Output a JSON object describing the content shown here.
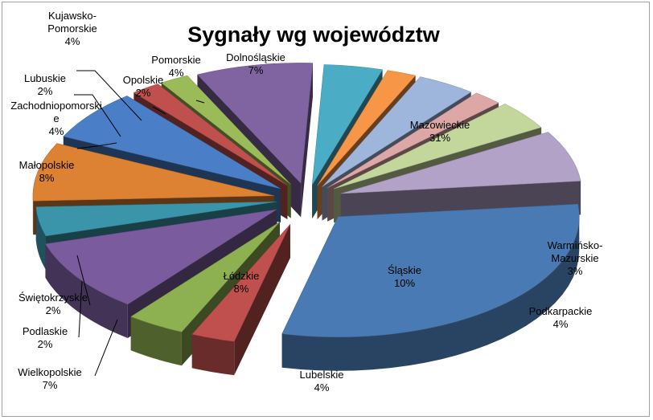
{
  "chart_data": {
    "type": "pie",
    "title": "Sygnały wg województw",
    "slices": [
      {
        "name": "Mazowieckie",
        "value": 31,
        "pct": "31%",
        "color": "#4a7ab4",
        "labelLines": [
          "Mazowieckie",
          "31%"
        ]
      },
      {
        "name": "Warmińsko-Mazurskie",
        "value": 3,
        "pct": "3%",
        "color": "#c0504d",
        "labelLines": [
          "Warmińsko-",
          "Mazurskie",
          "3%"
        ]
      },
      {
        "name": "Podkarpackie",
        "value": 4,
        "pct": "4%",
        "color": "#8db050",
        "labelLines": [
          "Podkarpackie",
          "4%"
        ]
      },
      {
        "name": "Śląskie",
        "value": 10,
        "pct": "10%",
        "color": "#7a5c9e",
        "labelLines": [
          "Śląskie",
          "10%"
        ]
      },
      {
        "name": "Lubelskie",
        "value": 4,
        "pct": "4%",
        "color": "#3b95aa",
        "labelLines": [
          "Lubelskie",
          "4%"
        ]
      },
      {
        "name": "Łódzkie",
        "value": 8,
        "pct": "8%",
        "color": "#dd8133",
        "labelLines": [
          "Łódzkie",
          "8%"
        ]
      },
      {
        "name": "Wielkopolskie",
        "value": 7,
        "pct": "7%",
        "color": "#4a7fc8",
        "labelLines": [
          "Wielkopolskie",
          "7%"
        ]
      },
      {
        "name": "Podlaskie",
        "value": 2,
        "pct": "2%",
        "color": "#c0504d",
        "labelLines": [
          "Podlaskie",
          "2%"
        ]
      },
      {
        "name": "Świętokrzyskie",
        "value": 2,
        "pct": "2%",
        "color": "#9bbb59",
        "labelLines": [
          "Świętokrzyskie",
          "2%"
        ]
      },
      {
        "name": "Małopolskie",
        "value": 8,
        "pct": "8%",
        "color": "#8064a2",
        "labelLines": [
          "Małopolskie",
          "8%"
        ]
      },
      {
        "name": "Zachodniopomorskie",
        "value": 4,
        "pct": "4%",
        "color": "#4bacc6",
        "labelLines": [
          "Zachodniopomorski",
          "e",
          "4%"
        ]
      },
      {
        "name": "Lubuskie",
        "value": 2,
        "pct": "2%",
        "color": "#f79646",
        "labelLines": [
          "Lubuskie",
          "2%"
        ]
      },
      {
        "name": "Kujawsko-Pomorskie",
        "value": 4,
        "pct": "4%",
        "color": "#9fb6dc",
        "labelLines": [
          "Kujawsko-",
          "Pomorskie",
          "4%"
        ]
      },
      {
        "name": "Opolskie",
        "value": 2,
        "pct": "2%",
        "color": "#dda7a6",
        "labelLines": [
          "Opolskie",
          "2%"
        ]
      },
      {
        "name": "Pomorskie",
        "value": 4,
        "pct": "4%",
        "color": "#c3d69b",
        "labelLines": [
          "Pomorskie",
          "4%"
        ]
      },
      {
        "name": "Dolnośląskie",
        "value": 7,
        "pct": "7%",
        "color": "#b3a2c7",
        "labelLines": [
          "Dolnośląskie",
          "7%"
        ]
      }
    ]
  }
}
